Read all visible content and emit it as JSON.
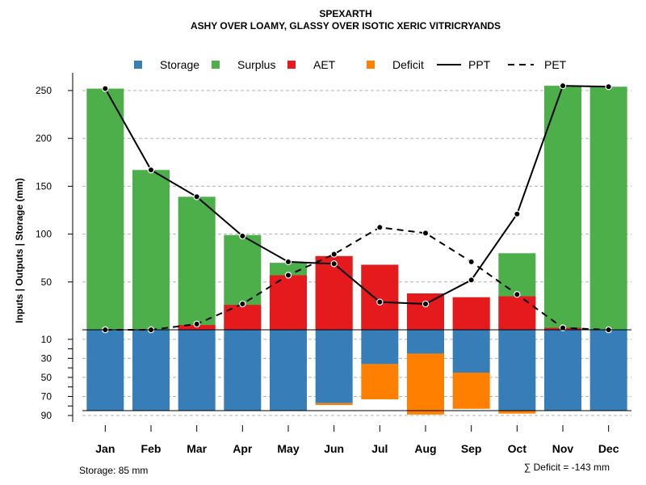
{
  "chart_data": {
    "type": "bar",
    "title": "SPEXARTH",
    "subtitle": "ASHY OVER LOAMY, GLASSY OVER ISOTIC XERIC VITRICRYANDS",
    "ylabel": "Inputs | Outputs | Storage    (mm)",
    "categories": [
      "Jan",
      "Feb",
      "Mar",
      "Apr",
      "May",
      "Jun",
      "Jul",
      "Aug",
      "Sep",
      "Oct",
      "Nov",
      "Dec"
    ],
    "upper_ylim": [
      0,
      270
    ],
    "lower_ylim": [
      0,
      90
    ],
    "upper_ticks": [
      "250",
      "200",
      "150",
      "100",
      "50"
    ],
    "upper_tick_values": [
      250,
      200,
      150,
      100,
      50
    ],
    "lower_ticks": [
      "10",
      "30",
      "50",
      "70",
      "90"
    ],
    "lower_tick_values": [
      10,
      30,
      50,
      70,
      90
    ],
    "series": [
      {
        "name": "Storage",
        "color": "#377EB8",
        "values": [
          85,
          85,
          85,
          85,
          85,
          77,
          36,
          25,
          45,
          85,
          85,
          85
        ]
      },
      {
        "name": "Surplus",
        "color": "#4DAF4A",
        "values": [
          252,
          167,
          139,
          99,
          70,
          77,
          68,
          38,
          34,
          80,
          255,
          254
        ]
      },
      {
        "name": "AET",
        "color": "#E41A1C",
        "values": [
          0,
          0,
          5,
          26,
          57,
          77,
          68,
          38,
          34,
          35,
          2,
          0
        ]
      },
      {
        "name": "Deficit",
        "color": "#FF7F00",
        "values": [
          0,
          0,
          0,
          0,
          0,
          2,
          37,
          64,
          38,
          3,
          0,
          0
        ]
      },
      {
        "name": "PPT",
        "color": "#000000",
        "values": [
          252,
          167,
          139,
          98,
          71,
          69,
          29,
          27,
          52,
          121,
          255,
          254
        ]
      },
      {
        "name": "PET",
        "color": "#000000",
        "values": [
          0,
          0,
          6,
          27,
          57,
          79,
          107,
          101,
          71,
          37,
          2,
          0
        ]
      }
    ],
    "legend": [
      "Storage",
      "Surplus",
      "AET",
      "Deficit",
      "PPT",
      "PET"
    ],
    "legend_position": "top"
  },
  "notes": {
    "storage": "Storage: 85 mm",
    "deficit": "∑ Deficit = -143 mm"
  }
}
